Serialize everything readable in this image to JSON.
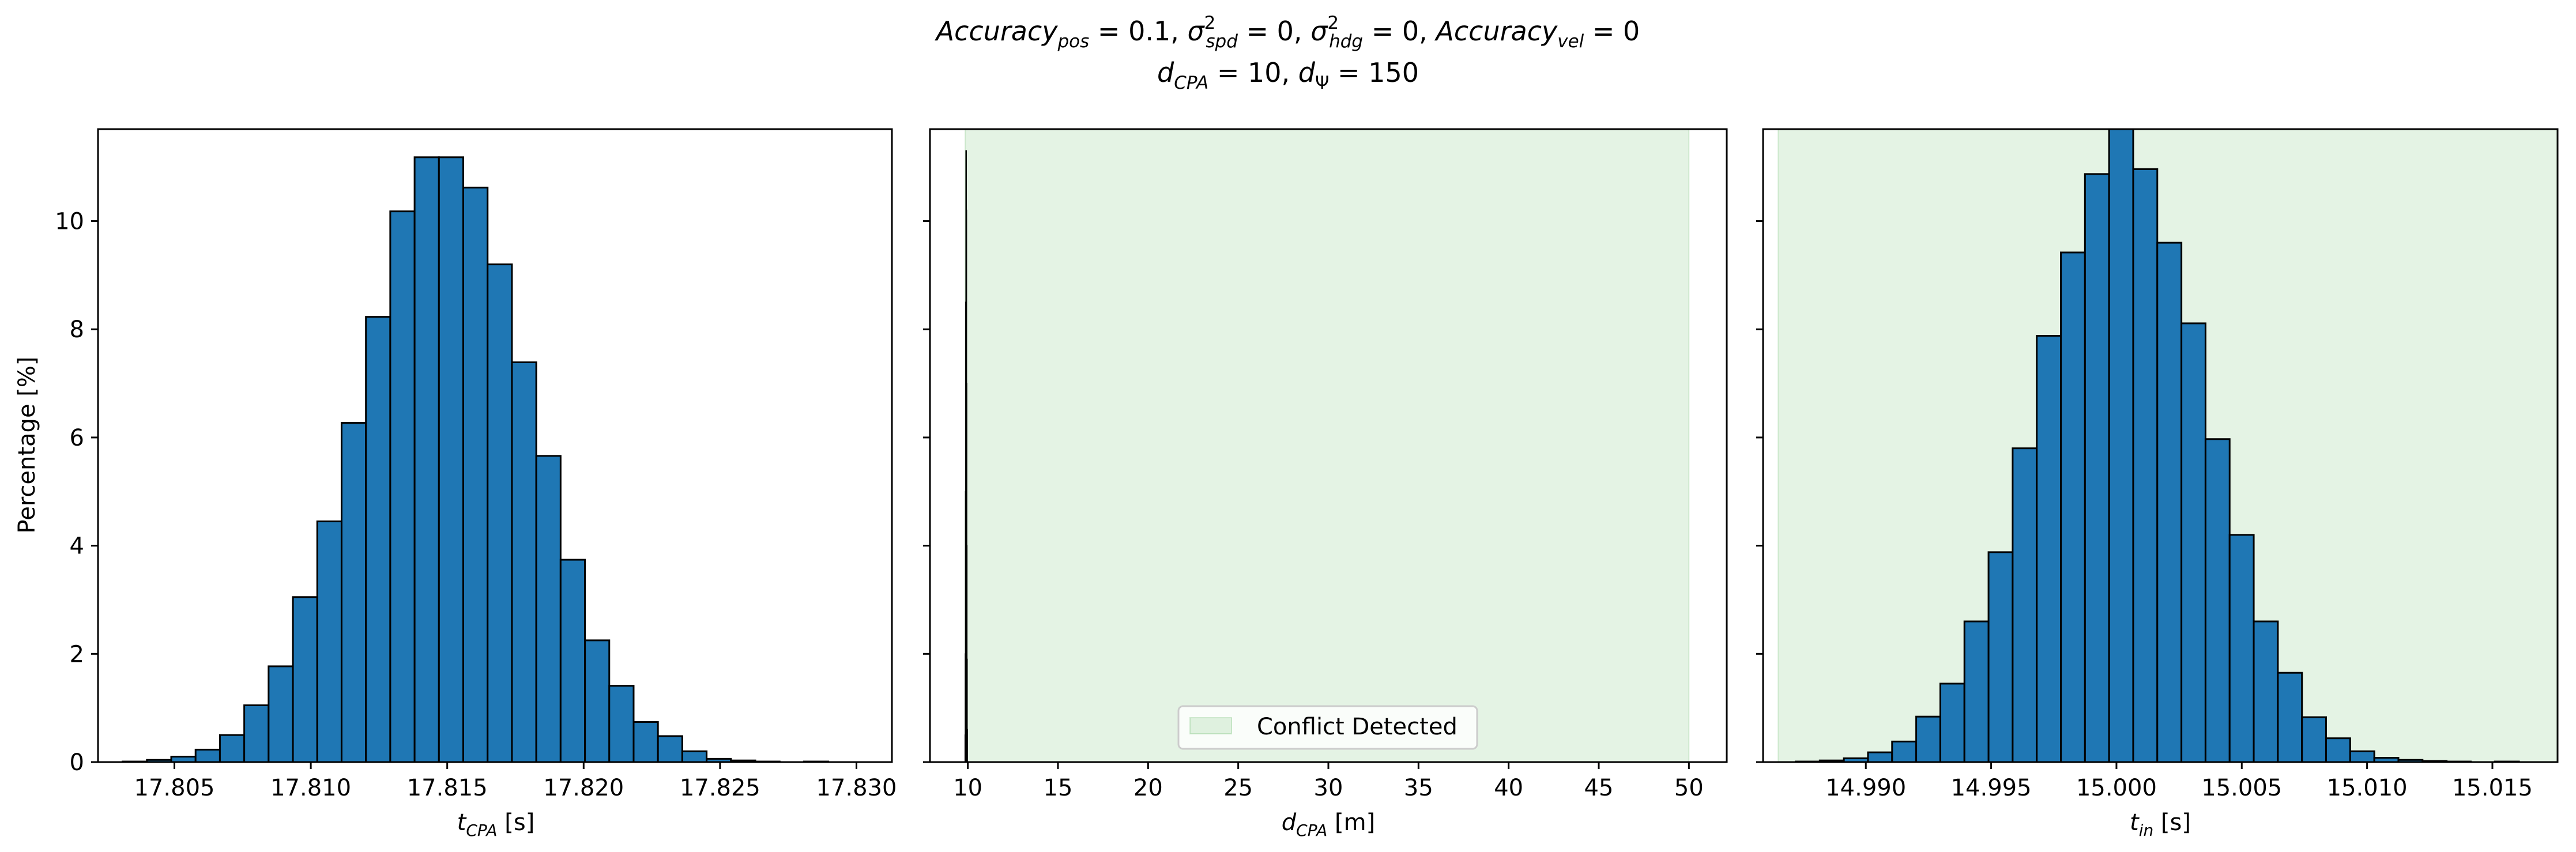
{
  "figure": {
    "title_line1": "Accuracy_pos = 0.1, σ²_spd = 0, σ²_hdg = 0, Accuracy_vel = 0",
    "title_line2": "d_CPA = 10, d_Ψ = 150"
  },
  "chart_data": [
    {
      "type": "bar",
      "xlabel": "t_CPA [s]",
      "ylabel": "Percentage [%]",
      "xlim": [
        17.8022,
        17.8313
      ],
      "ylim": [
        0,
        11.7
      ],
      "xticks": [
        17.805,
        17.81,
        17.815,
        17.82,
        17.825,
        17.83
      ],
      "xtick_labels": [
        "17.805",
        "17.810",
        "17.815",
        "17.820",
        "17.825",
        "17.830"
      ],
      "yticks": [
        0,
        2,
        4,
        6,
        8,
        10
      ],
      "ytick_labels": [
        "0",
        "2",
        "4",
        "6",
        "8",
        "10"
      ],
      "bin_start": 17.8031,
      "bin_width": 0.000892,
      "values": [
        0.01,
        0.04,
        0.1,
        0.23,
        0.5,
        1.05,
        1.77,
        3.05,
        4.45,
        6.27,
        8.23,
        10.18,
        11.18,
        11.18,
        10.62,
        9.2,
        7.39,
        5.66,
        3.74,
        2.25,
        1.41,
        0.74,
        0.48,
        0.2,
        0.06,
        0.03,
        0.01,
        0.0,
        0.01
      ],
      "bar_color": "#1f77b4",
      "edge_color": "#000000",
      "grid": false
    },
    {
      "type": "bar",
      "xlabel": "d_CPA [m]",
      "xlim": [
        7.9,
        52.1
      ],
      "ylim": [
        0,
        11.7
      ],
      "xticks": [
        10,
        15,
        20,
        25,
        30,
        35,
        40,
        45,
        50
      ],
      "xtick_labels": [
        "10",
        "15",
        "20",
        "25",
        "30",
        "35",
        "40",
        "45",
        "50"
      ],
      "yticks": [
        0,
        2,
        4,
        6,
        8,
        10
      ],
      "bin_start": 9.85,
      "bin_width": 0.012,
      "values": [
        0.5,
        2.0,
        5.0,
        8.5,
        11.3,
        10.2,
        7.0,
        4.0,
        1.9,
        0.6
      ],
      "bar_color": "#1f77b4",
      "edge_color": "#000000",
      "shaded_region": {
        "x0": 9.85,
        "x1": 50.0,
        "color": "#2ca02c",
        "alpha": 0.13
      },
      "legend": {
        "label": "Conflict Detected",
        "loc": "lower center"
      },
      "grid": false
    },
    {
      "type": "bar",
      "xlabel": "t_in [s]",
      "xlim": [
        14.9859,
        15.0176
      ],
      "ylim": [
        0,
        11.7
      ],
      "xticks": [
        14.99,
        14.995,
        15.0,
        15.005,
        15.01,
        15.015
      ],
      "xtick_labels": [
        "14.990",
        "14.995",
        "15.000",
        "15.005",
        "15.010",
        "15.015"
      ],
      "yticks": [
        0,
        2,
        4,
        6,
        8,
        10
      ],
      "bin_start": 14.9872,
      "bin_width": 0.000962,
      "values": [
        0.01,
        0.03,
        0.07,
        0.18,
        0.38,
        0.84,
        1.45,
        2.6,
        3.88,
        5.8,
        7.88,
        9.42,
        10.87,
        11.7,
        10.96,
        9.6,
        8.11,
        5.97,
        4.2,
        2.6,
        1.65,
        0.83,
        0.44,
        0.2,
        0.08,
        0.04,
        0.02,
        0.01,
        0.0,
        0.01
      ],
      "bar_color": "#1f77b4",
      "edge_color": "#000000",
      "shaded_region": {
        "x0": 14.9865,
        "x1": 15.0176,
        "color": "#2ca02c",
        "alpha": 0.13
      },
      "grid": false
    }
  ]
}
